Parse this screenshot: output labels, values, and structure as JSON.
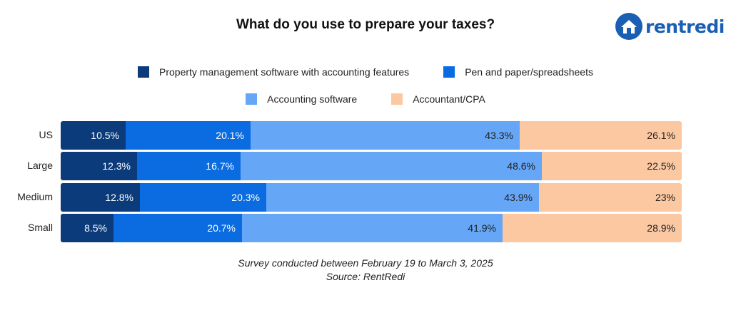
{
  "title": "What do you use to prepare your taxes?",
  "logo": {
    "text": "rentredi",
    "icon": "house-logo-icon"
  },
  "footer": {
    "note": "Survey conducted between February 19 to March 3, 2025",
    "source": "Source: RentRedi"
  },
  "colors": {
    "property_management": "#0b3b7a",
    "pen_paper": "#0a6ce0",
    "accounting_software": "#66a6f7",
    "accountant": "#fcc8a2"
  },
  "chart_data": {
    "type": "bar",
    "orientation": "horizontal",
    "stacked": true,
    "title": "What do you use to prepare your taxes?",
    "categories": [
      "US",
      "Large",
      "Medium",
      "Small"
    ],
    "series": [
      {
        "name": "Property management software with accounting features",
        "values": [
          10.5,
          12.3,
          12.8,
          8.5
        ],
        "labels": [
          "10.5%",
          "12.3%",
          "12.8%",
          "8.5%"
        ]
      },
      {
        "name": "Pen and paper/spreadsheets",
        "values": [
          20.1,
          16.7,
          20.3,
          20.7
        ],
        "labels": [
          "20.1%",
          "16.7%",
          "20.3%",
          "20.7%"
        ]
      },
      {
        "name": "Accounting software",
        "values": [
          43.3,
          48.6,
          43.9,
          41.9
        ],
        "labels": [
          "43.3%",
          "48.6%",
          "43.9%",
          "41.9%"
        ]
      },
      {
        "name": "Accountant/CPA",
        "values": [
          26.1,
          22.5,
          23,
          28.9
        ],
        "labels": [
          "26.1%",
          "22.5%",
          "23%",
          "28.9%"
        ]
      }
    ],
    "xlim": [
      0,
      100
    ],
    "grid": false,
    "legend": "top"
  }
}
